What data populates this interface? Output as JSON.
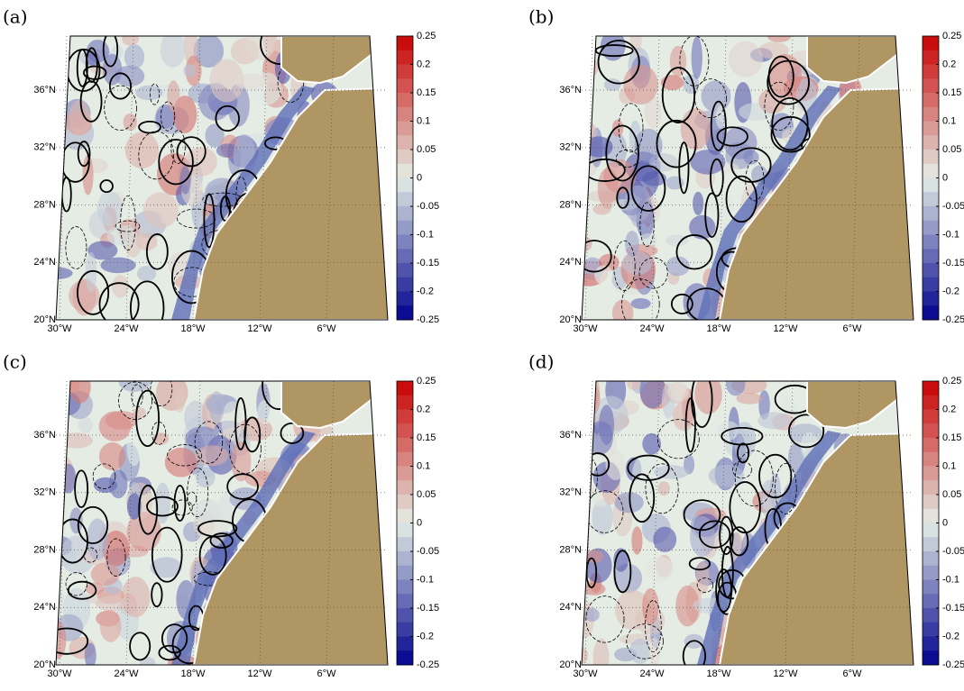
{
  "panels": [
    {
      "label": "(a)"
    },
    {
      "label": "(b)"
    },
    {
      "label": "(c)"
    },
    {
      "label": "(d)"
    }
  ],
  "lat_ticks": [
    {
      "value": 20,
      "label": "20°N"
    },
    {
      "value": 24,
      "label": "24°N"
    },
    {
      "value": 28,
      "label": "28°N"
    },
    {
      "value": 32,
      "label": "32°N"
    },
    {
      "value": 36,
      "label": "36°N"
    }
  ],
  "lon_ticks": [
    {
      "value": -30,
      "label": "30°W"
    },
    {
      "value": -24,
      "label": "24°W"
    },
    {
      "value": -18,
      "label": "18°W"
    },
    {
      "value": -12,
      "label": "12°W"
    },
    {
      "value": -6,
      "label": "6°W"
    }
  ],
  "colorbar": {
    "lim": [
      -0.25,
      0.25
    ],
    "ticks": [
      0.25,
      0.2,
      0.15,
      0.1,
      0.05,
      0,
      -0.05,
      -0.1,
      -0.15,
      -0.2,
      -0.25
    ]
  }
}
